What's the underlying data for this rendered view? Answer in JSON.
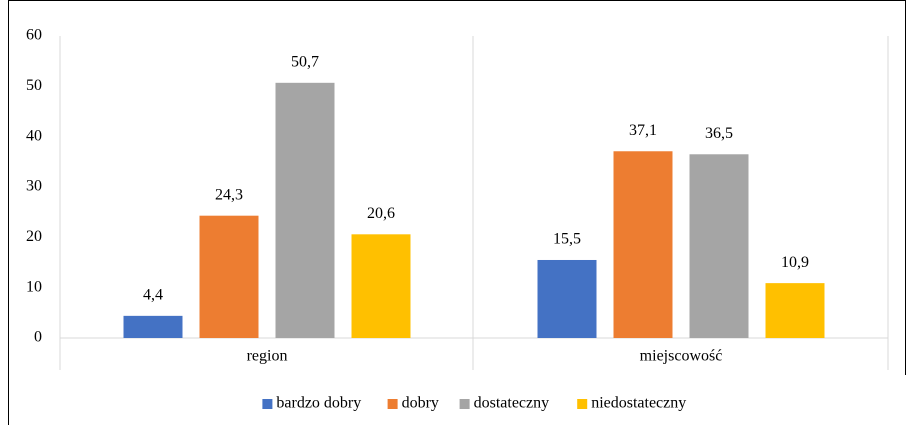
{
  "chart_data": {
    "type": "bar",
    "categories": [
      "region",
      "miejscowość"
    ],
    "series": [
      {
        "name": "bardzo dobry",
        "color": "#4472c4",
        "values": [
          4.4,
          15.5
        ],
        "value_labels": [
          "4,4",
          "15,5"
        ]
      },
      {
        "name": "dobry",
        "color": "#ed7d31",
        "values": [
          24.3,
          37.1
        ],
        "value_labels": [
          "24,3",
          "37,1"
        ]
      },
      {
        "name": "dostateczny",
        "color": "#a5a5a5",
        "values": [
          50.7,
          36.5
        ],
        "value_labels": [
          "50,7",
          "36,5"
        ]
      },
      {
        "name": "niedostateczny",
        "color": "#ffc000",
        "values": [
          20.6,
          10.9
        ],
        "value_labels": [
          "20,6",
          "10,9"
        ]
      }
    ],
    "ylim": [
      0,
      60
    ],
    "yticks": [
      0,
      10,
      20,
      30,
      40,
      50,
      60
    ],
    "grid": false,
    "legend": "bottom"
  }
}
